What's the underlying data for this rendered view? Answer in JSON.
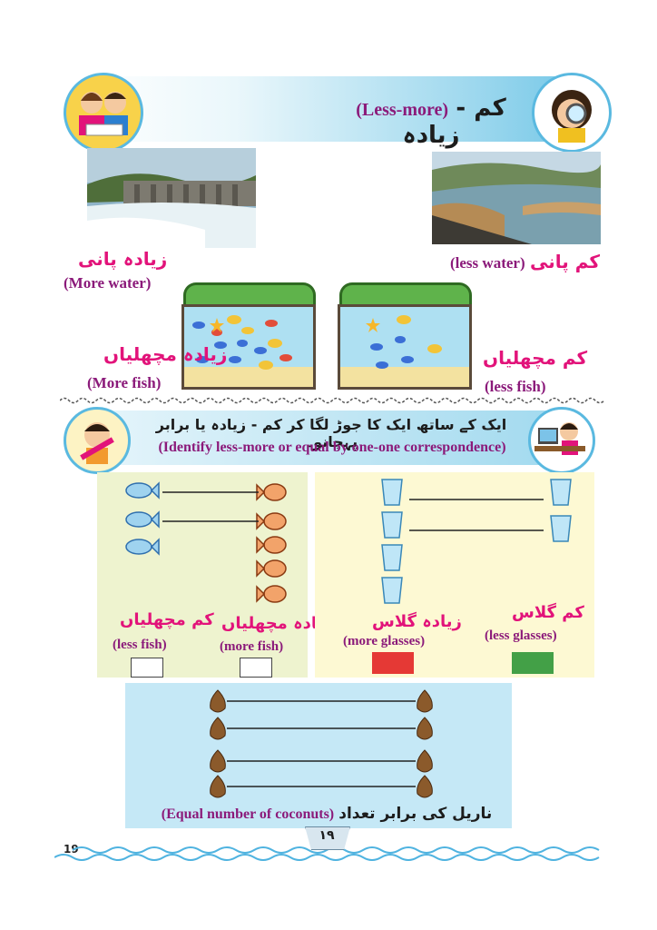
{
  "header": {
    "title_ur": "کم - زیادہ",
    "title_en": "(Less-more)"
  },
  "section1": {
    "more_water_ur": "زیادہ پانی",
    "more_water_en": "(More water)",
    "less_water_ur": "کم پانی",
    "less_water_en": "(less water)",
    "more_fish_ur": "زیادہ مچھلیاں",
    "more_fish_en": "(More fish)",
    "less_fish_ur": "کم مچھلیاں",
    "less_fish_en": "(less fish)"
  },
  "instruction": {
    "ur": "ایک کے ساتھ ایک کا جوڑ لگا کر کم - زیادہ یا برابر پہچانو۔",
    "en": "(Identify less-more or equal by one-one correspondence)"
  },
  "fish_panel": {
    "less_ur": "کم مچھلیاں",
    "less_en": "(less fish)",
    "more_ur": "زیادہ مچھلیاں",
    "more_en": "(more fish)"
  },
  "glass_panel": {
    "more_ur": "زیادہ گلاس",
    "more_en": "(more glasses)",
    "less_ur": "کم گلاس",
    "less_en": "(less glasses)",
    "more_color": "#e53935",
    "less_color": "#43a047"
  },
  "coconut_panel": {
    "caption_ur": "ناریل کی برابر تعداد",
    "caption_en": "(Equal number of coconuts)"
  },
  "footer": {
    "page_number": "19",
    "page_number_ur": "۱۹"
  }
}
